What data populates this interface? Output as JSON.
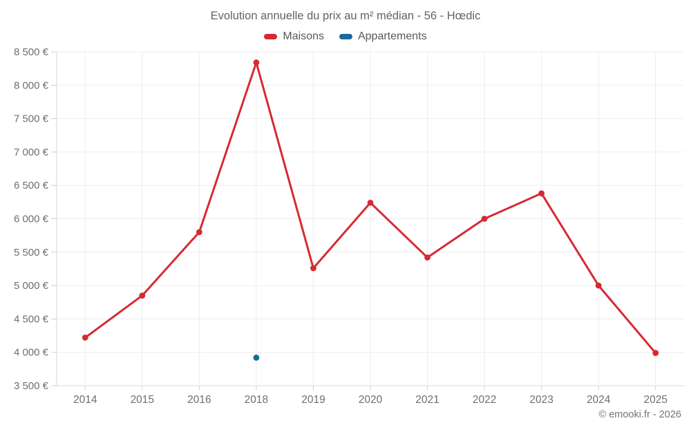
{
  "chart": {
    "title": "Evolution annuelle du prix au m² médian - 56 - Hœdic"
  },
  "footer": {
    "copyright": "© emooki.fr - 2026"
  },
  "chart_data": {
    "type": "line",
    "title": "Evolution annuelle du prix au m² médian - 56 - Hœdic",
    "categories": [
      "2014",
      "2015",
      "2016",
      "2018",
      "2019",
      "2020",
      "2021",
      "2022",
      "2023",
      "2024",
      "2025"
    ],
    "series": [
      {
        "name": "Maisons",
        "color": "#d62a32",
        "values": [
          4220,
          4850,
          5800,
          8340,
          5260,
          6240,
          5420,
          6000,
          6380,
          5000,
          3990
        ]
      },
      {
        "name": "Appartements",
        "color": "#17699c",
        "values": [
          null,
          null,
          null,
          3920,
          null,
          null,
          null,
          null,
          null,
          null,
          null
        ]
      }
    ],
    "ylim": [
      3500,
      8500
    ],
    "yticks": [
      {
        "value": 3500,
        "label": "3 500 €"
      },
      {
        "value": 4000,
        "label": "4 000 €"
      },
      {
        "value": 4500,
        "label": "4 500 €"
      },
      {
        "value": 5000,
        "label": "5 000 €"
      },
      {
        "value": 5500,
        "label": "5 500 €"
      },
      {
        "value": 6000,
        "label": "6 000 €"
      },
      {
        "value": 6500,
        "label": "6 500 €"
      },
      {
        "value": 7000,
        "label": "7 000 €"
      },
      {
        "value": 7500,
        "label": "7 500 €"
      },
      {
        "value": 8000,
        "label": "8 000 €"
      },
      {
        "value": 8500,
        "label": "8 500 €"
      }
    ],
    "grid": true,
    "legend_position": "top",
    "xlabel": "",
    "ylabel": ""
  }
}
